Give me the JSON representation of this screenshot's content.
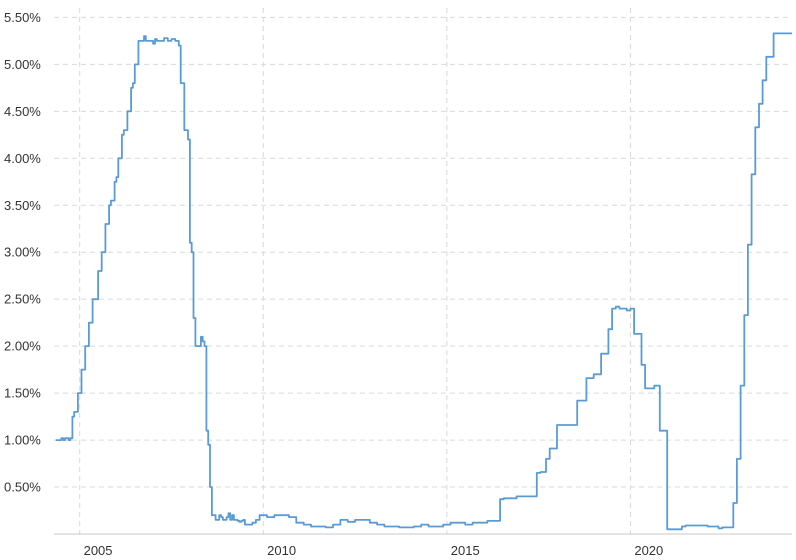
{
  "chart_data": {
    "type": "line",
    "title": "",
    "xlabel": "",
    "ylabel": "",
    "xlim": [
      2003.8,
      2023.9
    ],
    "ylim": [
      0,
      5.6
    ],
    "grid": true,
    "legend": "none",
    "colors": {
      "line": "#5b9bd5",
      "grid": "#d9d9d9",
      "text": "#333333"
    },
    "yticks": [
      {
        "value": 0.5,
        "label": "0.50%"
      },
      {
        "value": 1.0,
        "label": "1.00%"
      },
      {
        "value": 1.5,
        "label": "1.50%"
      },
      {
        "value": 2.0,
        "label": "2.00%"
      },
      {
        "value": 2.5,
        "label": "2.50%"
      },
      {
        "value": 3.0,
        "label": "3.00%"
      },
      {
        "value": 3.5,
        "label": "3.50%"
      },
      {
        "value": 4.0,
        "label": "4.00%"
      },
      {
        "value": 4.5,
        "label": "4.50%"
      },
      {
        "value": 5.0,
        "label": "5.00%"
      },
      {
        "value": 5.5,
        "label": "5.50%"
      }
    ],
    "xgrid": [
      2004.5,
      2009.5,
      2014.5,
      2019.5
    ],
    "xticks": [
      {
        "value": 2005,
        "label": "2005"
      },
      {
        "value": 2010,
        "label": "2010"
      },
      {
        "value": 2015,
        "label": "2015"
      },
      {
        "value": 2020,
        "label": "2020"
      }
    ],
    "series": [
      {
        "name": "",
        "x": [
          2003.85,
          2004.0,
          2004.05,
          2004.1,
          2004.2,
          2004.25,
          2004.3,
          2004.35,
          2004.45,
          2004.5,
          2004.55,
          2004.6,
          2004.65,
          2004.7,
          2004.75,
          2004.8,
          2004.85,
          2004.95,
          2005.0,
          2005.1,
          2005.15,
          2005.2,
          2005.25,
          2005.3,
          2005.35,
          2005.45,
          2005.5,
          2005.55,
          2005.6,
          2005.65,
          2005.7,
          2005.8,
          2005.85,
          2005.9,
          2005.95,
          2006.0,
          2006.05,
          2006.1,
          2006.15,
          2006.2,
          2006.25,
          2006.3,
          2006.4,
          2006.5,
          2006.55,
          2006.6,
          2006.7,
          2006.8,
          2006.9,
          2007.0,
          2007.1,
          2007.2,
          2007.25,
          2007.3,
          2007.35,
          2007.45,
          2007.5,
          2007.55,
          2007.6,
          2007.65,
          2007.7,
          2007.75,
          2007.8,
          2007.85,
          2007.9,
          2007.95,
          2008.0,
          2008.05,
          2008.1,
          2008.15,
          2008.2,
          2008.25,
          2008.3,
          2008.35,
          2008.4,
          2008.45,
          2008.5,
          2008.55,
          2008.6,
          2008.65,
          2008.7,
          2008.75,
          2008.8,
          2008.85,
          2008.9,
          2008.95,
          2009.0,
          2009.1,
          2009.2,
          2009.3,
          2009.4,
          2009.5,
          2009.6,
          2009.7,
          2009.8,
          2010.0,
          2010.2,
          2010.4,
          2010.6,
          2010.8,
          2011.0,
          2011.2,
          2011.4,
          2011.6,
          2011.8,
          2012.0,
          2012.2,
          2012.4,
          2012.6,
          2012.8,
          2013.0,
          2013.2,
          2013.4,
          2013.6,
          2013.8,
          2014.0,
          2014.2,
          2014.4,
          2014.6,
          2014.8,
          2015.0,
          2015.2,
          2015.4,
          2015.6,
          2015.8,
          2015.95,
          2016.05,
          2016.2,
          2016.4,
          2016.6,
          2016.8,
          2016.95,
          2017.05,
          2017.2,
          2017.3,
          2017.5,
          2017.7,
          2017.9,
          2018.05,
          2018.2,
          2018.3,
          2018.5,
          2018.7,
          2018.9,
          2019.0,
          2019.1,
          2019.2,
          2019.3,
          2019.4,
          2019.5,
          2019.6,
          2019.7,
          2019.8,
          2019.9,
          2020.0,
          2020.1,
          2020.15,
          2020.2,
          2020.3,
          2020.5,
          2020.7,
          2020.9,
          2021.0,
          2021.3,
          2021.6,
          2021.9,
          2022.0,
          2022.15,
          2022.3,
          2022.4,
          2022.5,
          2022.6,
          2022.7,
          2022.8,
          2022.9,
          2023.0,
          2023.1,
          2023.2,
          2023.3,
          2023.4,
          2023.5,
          2023.6,
          2023.7,
          2023.8,
          2023.9
        ],
        "values": [
          1.0,
          1.02,
          1.0,
          1.02,
          1.0,
          1.02,
          1.25,
          1.3,
          1.5,
          1.5,
          1.75,
          1.75,
          2.0,
          2.0,
          2.25,
          2.25,
          2.5,
          2.5,
          2.8,
          3.0,
          3.0,
          3.3,
          3.3,
          3.5,
          3.55,
          3.75,
          3.8,
          4.0,
          4.0,
          4.25,
          4.3,
          4.5,
          4.5,
          4.75,
          4.8,
          5.0,
          5.0,
          5.25,
          5.25,
          5.25,
          5.3,
          5.25,
          5.25,
          5.22,
          5.27,
          5.25,
          5.25,
          5.28,
          5.25,
          5.27,
          5.25,
          5.2,
          4.8,
          4.8,
          4.3,
          4.2,
          3.1,
          3.0,
          2.3,
          2.0,
          2.0,
          2.0,
          2.1,
          2.05,
          2.0,
          1.1,
          0.95,
          0.5,
          0.2,
          0.2,
          0.15,
          0.15,
          0.2,
          0.18,
          0.15,
          0.15,
          0.18,
          0.22,
          0.15,
          0.2,
          0.15,
          0.15,
          0.14,
          0.13,
          0.14,
          0.15,
          0.1,
          0.1,
          0.12,
          0.15,
          0.2,
          0.2,
          0.18,
          0.18,
          0.2,
          0.2,
          0.18,
          0.12,
          0.1,
          0.08,
          0.08,
          0.07,
          0.1,
          0.15,
          0.13,
          0.15,
          0.15,
          0.12,
          0.1,
          0.08,
          0.08,
          0.07,
          0.07,
          0.08,
          0.1,
          0.08,
          0.08,
          0.1,
          0.12,
          0.12,
          0.1,
          0.12,
          0.12,
          0.14,
          0.14,
          0.37,
          0.38,
          0.38,
          0.4,
          0.4,
          0.4,
          0.65,
          0.66,
          0.8,
          0.91,
          1.16,
          1.16,
          1.16,
          1.42,
          1.42,
          1.66,
          1.7,
          1.92,
          2.18,
          2.4,
          2.42,
          2.4,
          2.4,
          2.38,
          2.4,
          2.13,
          2.13,
          1.8,
          1.55,
          1.55,
          1.55,
          1.58,
          1.58,
          1.1,
          0.05,
          0.05,
          0.08,
          0.09,
          0.09,
          0.08,
          0.06,
          0.07,
          0.07,
          0.33,
          0.8,
          1.58,
          2.33,
          3.08,
          3.83,
          4.33,
          4.58,
          4.83,
          5.08,
          5.08,
          5.33,
          5.33,
          5.33,
          5.33,
          5.33,
          5.33
        ]
      }
    ]
  }
}
